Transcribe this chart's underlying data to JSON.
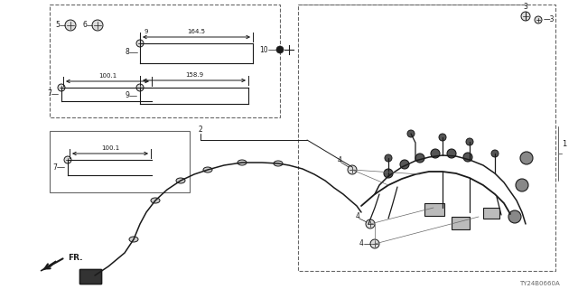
{
  "bg_color": "#ffffff",
  "line_color": "#000000",
  "dark": "#1a1a1a",
  "gray": "#666666",
  "lgray": "#999999",
  "diagram_code": "TY24B0660A",
  "fig_w": 6.4,
  "fig_h": 3.2,
  "dpi": 100
}
